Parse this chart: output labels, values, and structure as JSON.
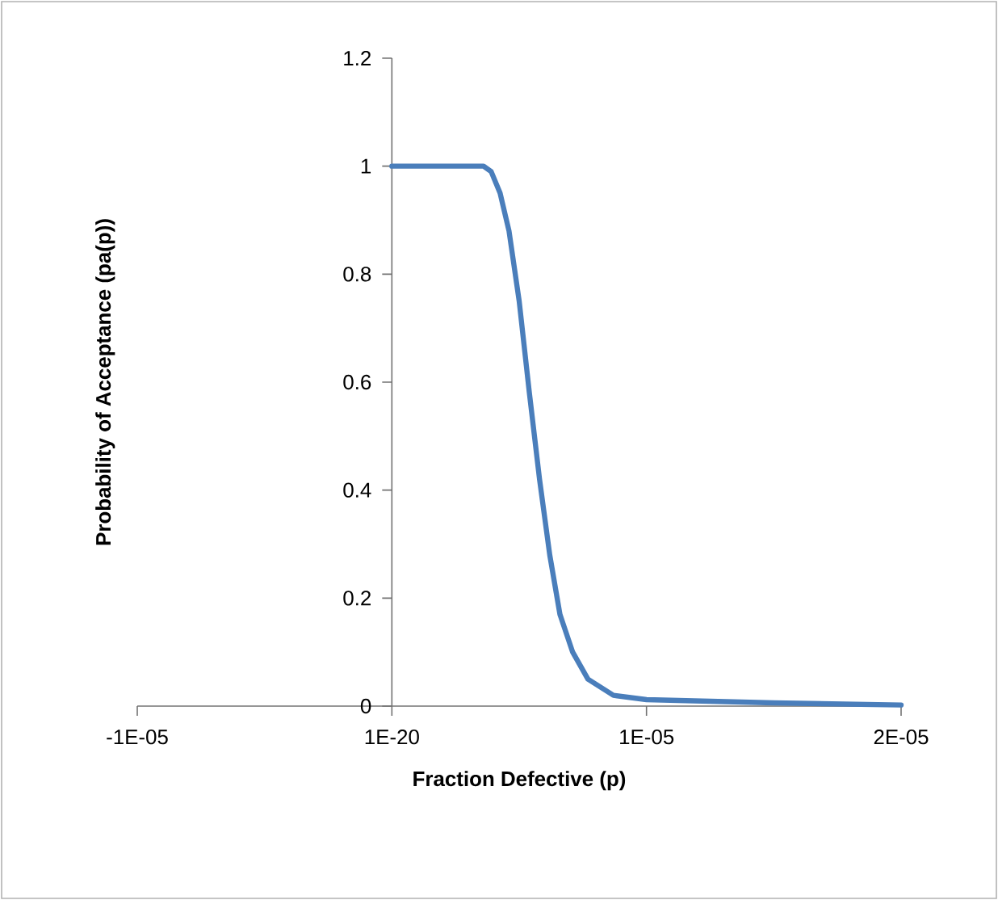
{
  "chart_data": {
    "type": "line",
    "xlabel": "Fraction Defective (p)",
    "ylabel": "Probability of Acceptance (pa(p))",
    "xlim": [
      -1e-05,
      2e-05
    ],
    "ylim": [
      0,
      1.2
    ],
    "xticks": [
      {
        "value": -1e-05,
        "label": "-1E-05"
      },
      {
        "value": 1e-20,
        "label": "1E-20"
      },
      {
        "value": 1e-05,
        "label": "1E-05"
      },
      {
        "value": 2e-05,
        "label": "2E-05"
      }
    ],
    "yticks": [
      0,
      0.2,
      0.4,
      0.6,
      0.8,
      1,
      1.2
    ],
    "grid": false,
    "marker": "none",
    "line_style": "solid",
    "series": [
      {
        "color": "#4a7ebb",
        "x": [
          0,
          2.35e-06,
          3.6e-06,
          3.9e-06,
          4.25e-06,
          4.6e-06,
          5e-06,
          5.4e-06,
          5.8e-06,
          6.2e-06,
          6.6e-06,
          7.1e-06,
          7.7e-06,
          8.7e-06,
          1e-05,
          1.5e-05,
          2e-05
        ],
        "values": [
          1,
          1,
          1,
          0.99,
          0.95,
          0.88,
          0.75,
          0.58,
          0.42,
          0.28,
          0.17,
          0.1,
          0.05,
          0.02,
          0.012,
          0.006,
          0.002
        ]
      }
    ]
  }
}
